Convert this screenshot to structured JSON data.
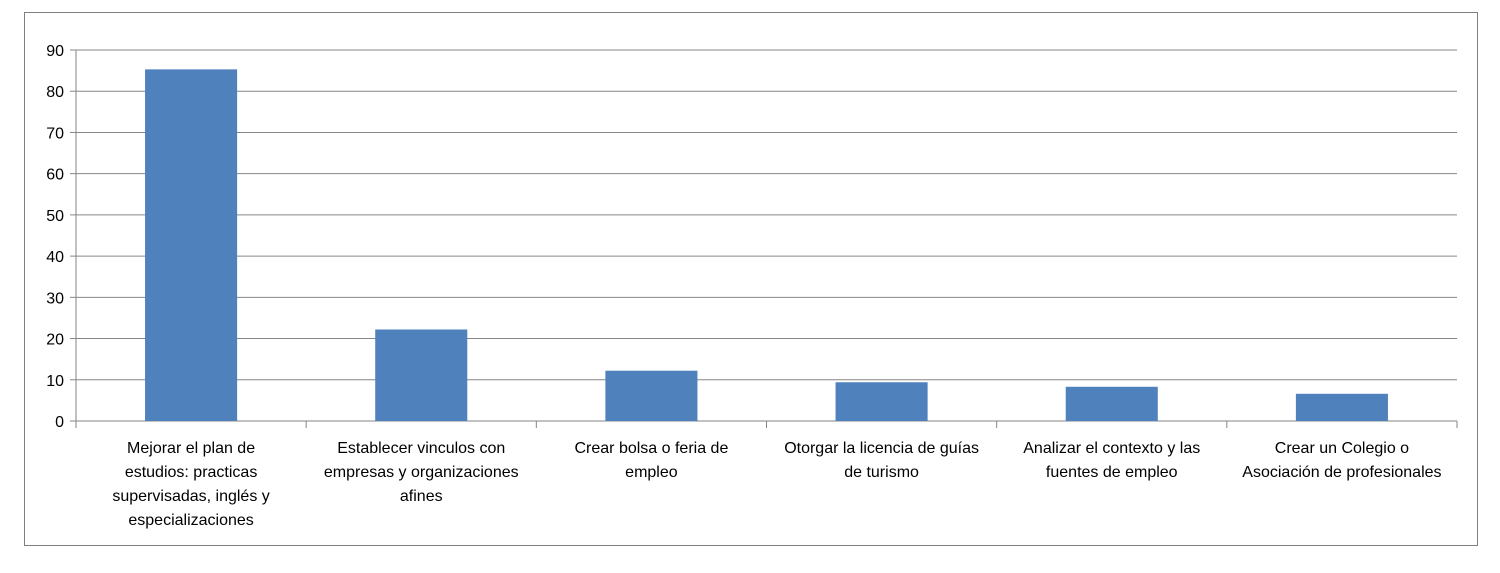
{
  "chart_data": {
    "type": "bar",
    "title": "",
    "xlabel": "",
    "ylabel": "",
    "ylim": [
      0,
      90
    ],
    "yticks": [
      0,
      10,
      20,
      30,
      40,
      50,
      60,
      70,
      80,
      90
    ],
    "grid": true,
    "legend": "none",
    "bar_color": "#4F81BD",
    "grid_color": "#868686",
    "categories": [
      [
        "Mejorar el plan de",
        "estudios: practicas",
        "supervisadas, inglés y",
        "especializaciones"
      ],
      [
        "Establecer vinculos con",
        "empresas y organizaciones",
        "afines"
      ],
      [
        "Crear bolsa o feria  de",
        "empleo"
      ],
      [
        "Otorgar la licencia de guías",
        "de turismo"
      ],
      [
        "Analizar el contexto y las",
        "fuentes de empleo"
      ],
      [
        "Crear un Colegio o",
        "Asociación de profesionales"
      ]
    ],
    "values": [
      85.3,
      22.2,
      12.2,
      9.4,
      8.3,
      6.6
    ]
  }
}
